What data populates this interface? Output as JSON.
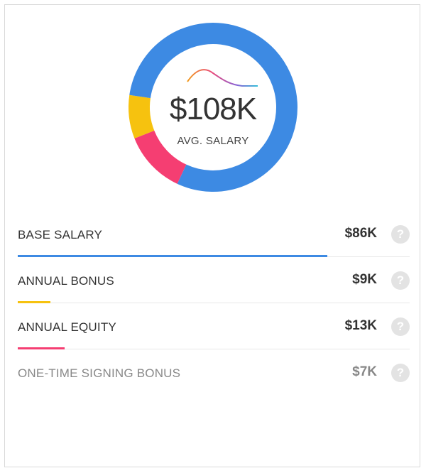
{
  "chart_data": {
    "type": "pie",
    "style": "donut",
    "total_label": "$108K",
    "center_caption": "AVG. SALARY",
    "categories": [
      "BASE SALARY",
      "ANNUAL BONUS",
      "ANNUAL EQUITY",
      "ONE-TIME SIGNING BONUS"
    ],
    "values": [
      86,
      9,
      13,
      7
    ],
    "value_labels": [
      "$86K",
      "$9K",
      "$13K",
      "$7K"
    ],
    "units": "$K",
    "colors": [
      "#3d8ae3",
      "#f6c20f",
      "#f53e72",
      "#bdbdbd"
    ],
    "in_donut": [
      true,
      true,
      true,
      false
    ]
  },
  "help_glyph": "?"
}
